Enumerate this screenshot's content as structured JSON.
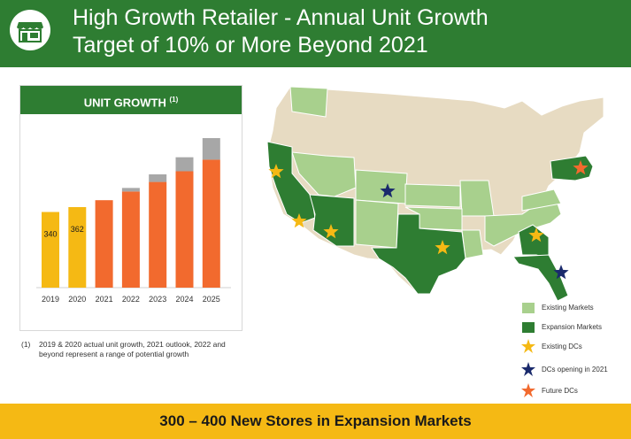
{
  "header": {
    "title_line1": "High Growth Retailer - Annual Unit Growth",
    "title_line2": "Target of 10% or More Beyond 2021",
    "icon": "store-icon"
  },
  "chart_panel": {
    "title": "UNIT GROWTH",
    "title_footnote_ref": "(1)"
  },
  "chart_data": {
    "type": "bar",
    "categories": [
      "2019",
      "2020",
      "2021",
      "2022",
      "2023",
      "2024",
      "2025"
    ],
    "series": [
      {
        "values": [
          340,
          362,
          393,
          432,
          475,
          523,
          575
        ]
      },
      {
        "values": [
          0,
          0,
          0,
          16,
          34,
          63,
          97
        ]
      }
    ],
    "data_labels": [
      "340",
      "362"
    ],
    "ylim": [
      0,
      700
    ],
    "colors": {
      "actual": "#f5b914",
      "base": "#f26a2e",
      "range": "#a7a7a7"
    }
  },
  "footnote": {
    "number": "(1)",
    "text": "2019 & 2020 actual unit growth, 2021 outlook, 2022 and beyond represent a range of potential growth"
  },
  "legend": [
    {
      "label": "Existing Markets",
      "icon": "light-green-square",
      "color": "#a8d08d"
    },
    {
      "label": "Expansion Markets",
      "icon": "dark-green-square",
      "color": "#2e7d32"
    },
    {
      "label": "Existing DCs",
      "icon": "yellow-star-icon",
      "color": "#f5b914"
    },
    {
      "label": "DCs opening in 2021",
      "icon": "navy-star-icon",
      "color": "#1a2a6c"
    },
    {
      "label": "Future DCs",
      "icon": "orange-star-icon",
      "color": "#f26a2e"
    }
  ],
  "banner": {
    "text": "300 – 400 New Stores in Expansion Markets"
  }
}
